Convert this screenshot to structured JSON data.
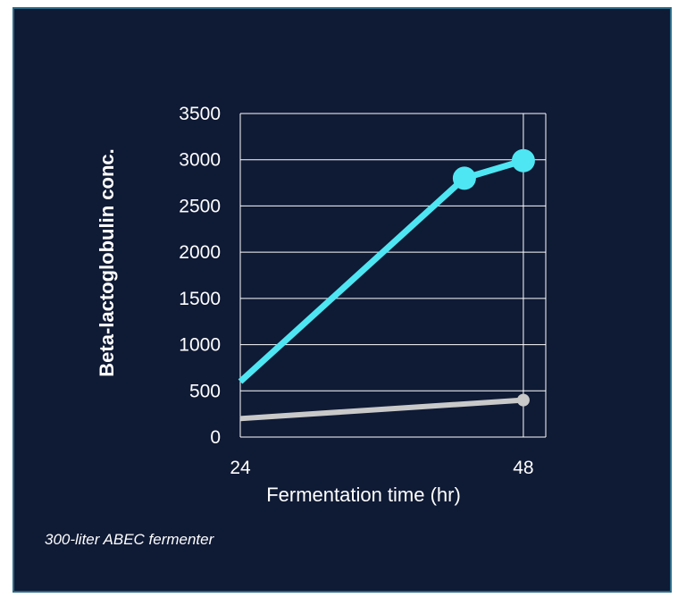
{
  "footnote": "300-liter ABEC fermenter",
  "colors": {
    "background": "#0f1a35",
    "border": "#2c6a86",
    "grid": "#ffffff",
    "text": "#ffffff"
  },
  "chart_data": {
    "type": "line",
    "title": "",
    "xlabel": "Fermentation time (hr)",
    "ylabel": "Beta-lactoglobulin conc.",
    "ylim": [
      0,
      3500
    ],
    "yticks": [
      "0",
      "500",
      "1000",
      "1500",
      "2000",
      "2500",
      "3000",
      "3500"
    ],
    "xticks": [
      "24",
      "48"
    ],
    "xlim": [
      24,
      49.9
    ],
    "grid": true,
    "legend": "none",
    "series": [
      {
        "color": "#4ee6f2",
        "x": [
          24,
          43,
          48
        ],
        "y": [
          600,
          2800,
          2990
        ],
        "markers": [
          false,
          true,
          true
        ]
      },
      {
        "color": "#c9c9c9",
        "x": [
          24,
          48
        ],
        "y": [
          200,
          400
        ],
        "markers": [
          false,
          true
        ]
      }
    ]
  }
}
